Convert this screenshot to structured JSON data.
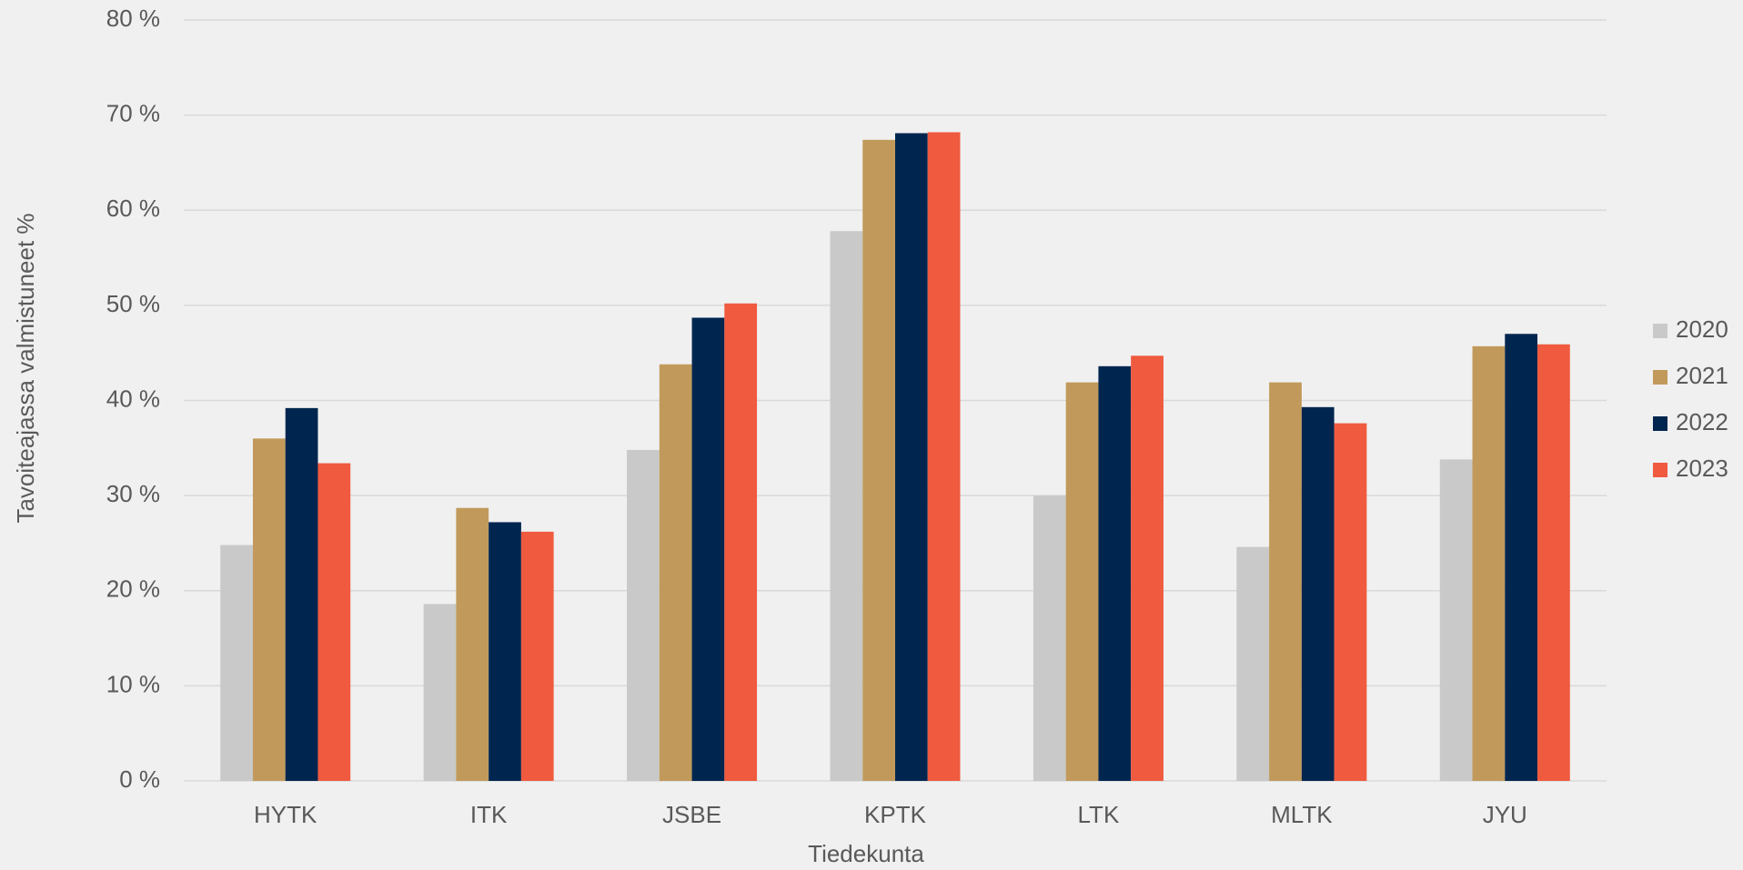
{
  "chart_data": {
    "type": "bar",
    "x_label": "Tiedekunta",
    "y_label": "Tavoiteajassa valmistuneet %",
    "categories": [
      "HYTK",
      "ITK",
      "JSBE",
      "KPTK",
      "LTK",
      "MLTK",
      "JYU"
    ],
    "series": [
      {
        "name": "2020",
        "color": "#c8c9c8",
        "values": [
          24.8,
          18.6,
          34.8,
          57.8,
          30,
          24.6,
          33.8
        ]
      },
      {
        "name": "2021",
        "color": "#c19a5b",
        "values": [
          36,
          28.7,
          43.8,
          67.4,
          41.9,
          41.9,
          45.7
        ]
      },
      {
        "name": "2022",
        "color": "#00264f",
        "values": [
          39.2,
          27.2,
          48.7,
          68.1,
          43.6,
          39.3,
          47
        ]
      },
      {
        "name": "2023",
        "color": "#f05a3f",
        "values": [
          33.4,
          26.2,
          50.2,
          68.2,
          44.7,
          37.6,
          45.9
        ]
      }
    ],
    "ylim": [
      0,
      80
    ],
    "yticks": [
      {
        "value": 0,
        "label": "0 %"
      },
      {
        "value": 10,
        "label": "10 %"
      },
      {
        "value": 20,
        "label": "20 %"
      },
      {
        "value": 30,
        "label": "30 %"
      },
      {
        "value": 40,
        "label": "40 %"
      },
      {
        "value": 50,
        "label": "50 %"
      },
      {
        "value": 60,
        "label": "60 %"
      },
      {
        "value": 70,
        "label": "70 %"
      },
      {
        "value": 80,
        "label": "80 %"
      }
    ],
    "grid": true,
    "legend": "right"
  }
}
